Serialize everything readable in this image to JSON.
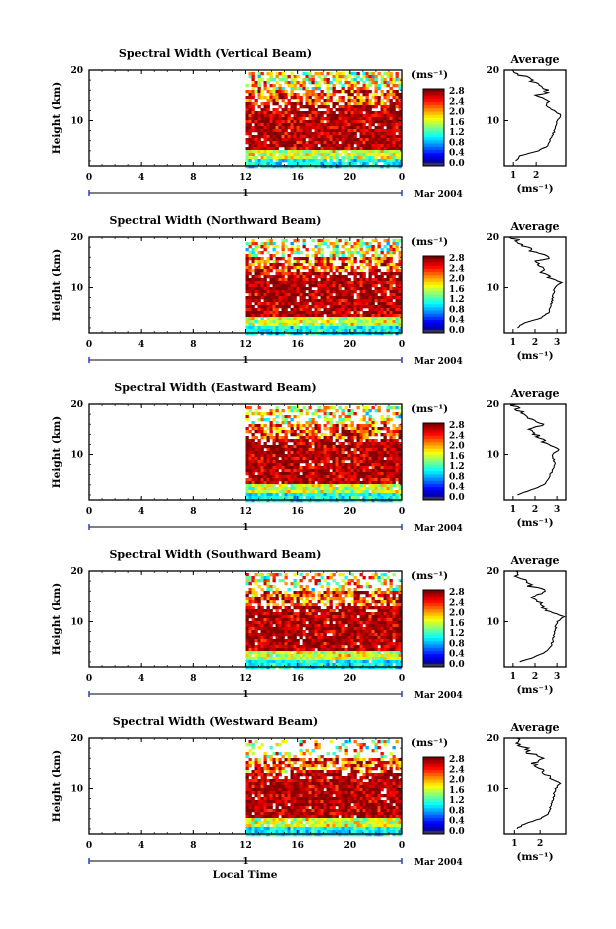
{
  "figure": {
    "xlabel": "Local Time",
    "colorbar_unit": "(ms⁻¹)",
    "average_title": "Average",
    "average_unit": "(ms⁻¹)",
    "date_label": "Mar 2004",
    "day_label": "1"
  },
  "chart_data": [
    {
      "type": "heatmap",
      "title": "Spectral Width (Vertical Beam)",
      "ylabel": "Height (km)",
      "x_ticks": [
        "0",
        "4",
        "8",
        "12",
        "16",
        "20",
        "0"
      ],
      "xlim": [
        0,
        24
      ],
      "ylim": [
        1,
        20
      ],
      "y_ticks": [
        "20",
        "10"
      ],
      "data_start_hour": 12,
      "colorbar_ticks": [
        "2.8",
        "2.4",
        "2.0",
        "1.6",
        "1.2",
        "0.8",
        "0.4",
        "0.0"
      ],
      "colorbar_range": [
        0,
        3
      ],
      "average": {
        "type": "line",
        "x_ticks": [
          "1",
          "2"
        ],
        "xlim": [
          0.6,
          3.3
        ],
        "height": [
          2,
          3,
          4,
          5,
          6,
          8,
          10,
          11,
          12,
          13,
          14,
          15,
          16,
          17,
          18,
          19,
          20
        ],
        "width": [
          1.1,
          1.3,
          2.1,
          2.5,
          2.6,
          2.8,
          2.9,
          3.1,
          2.8,
          2.5,
          2.4,
          2.1,
          2.6,
          2.0,
          1.8,
          1.3,
          1.1
        ]
      }
    },
    {
      "type": "heatmap",
      "title": "Spectral Width (Northward Beam)",
      "ylabel": "Height (km)",
      "x_ticks": [
        "0",
        "4",
        "8",
        "12",
        "16",
        "20",
        "0"
      ],
      "xlim": [
        0,
        24
      ],
      "ylim": [
        1,
        20
      ],
      "y_ticks": [
        "20",
        "10"
      ],
      "data_start_hour": 12,
      "colorbar_ticks": [
        "2.8",
        "2.4",
        "2.0",
        "1.6",
        "1.2",
        "0.8",
        "0.4",
        "0.0"
      ],
      "colorbar_range": [
        0,
        3
      ],
      "average": {
        "type": "line",
        "x_ticks": [
          "1",
          "2",
          "3"
        ],
        "xlim": [
          0.6,
          3.4
        ],
        "height": [
          2,
          3,
          4,
          5,
          6,
          8,
          10,
          11,
          12,
          13,
          14,
          15,
          16,
          17,
          18,
          19,
          20
        ],
        "width": [
          1.2,
          1.5,
          2.3,
          2.6,
          2.7,
          2.8,
          2.9,
          3.2,
          2.6,
          2.4,
          2.2,
          2.0,
          2.7,
          1.9,
          1.6,
          1.3,
          1.0
        ]
      }
    },
    {
      "type": "heatmap",
      "title": "Spectral Width (Eastward Beam)",
      "ylabel": "Height (km)",
      "x_ticks": [
        "0",
        "4",
        "8",
        "12",
        "16",
        "20",
        "0"
      ],
      "xlim": [
        0,
        24
      ],
      "ylim": [
        1,
        20
      ],
      "y_ticks": [
        "20",
        "10"
      ],
      "data_start_hour": 12,
      "colorbar_ticks": [
        "2.8",
        "2.4",
        "2.0",
        "1.6",
        "1.2",
        "0.8",
        "0.4",
        "0.0"
      ],
      "colorbar_range": [
        0,
        3
      ],
      "average": {
        "type": "line",
        "x_ticks": [
          "1",
          "2",
          "3"
        ],
        "xlim": [
          0.6,
          3.4
        ],
        "height": [
          2,
          3,
          4,
          5,
          6,
          8,
          10,
          11,
          12,
          13,
          14,
          15,
          16,
          17,
          18,
          19,
          20
        ],
        "width": [
          1.2,
          1.8,
          2.4,
          2.6,
          2.7,
          2.9,
          2.8,
          3.1,
          2.6,
          2.3,
          2.0,
          1.8,
          2.5,
          1.7,
          1.4,
          1.2,
          1.0
        ]
      }
    },
    {
      "type": "heatmap",
      "title": "Spectral Width (Southward Beam)",
      "ylabel": "Height (km)",
      "x_ticks": [
        "0",
        "4",
        "8",
        "12",
        "16",
        "20",
        "0"
      ],
      "xlim": [
        0,
        24
      ],
      "ylim": [
        1,
        20
      ],
      "y_ticks": [
        "20",
        "10"
      ],
      "data_start_hour": 12,
      "colorbar_ticks": [
        "2.8",
        "2.4",
        "2.0",
        "1.6",
        "1.2",
        "0.8",
        "0.4",
        "0.0"
      ],
      "colorbar_range": [
        0,
        3
      ],
      "average": {
        "type": "line",
        "x_ticks": [
          "1",
          "2",
          "3"
        ],
        "xlim": [
          0.6,
          3.4
        ],
        "height": [
          2,
          3,
          4,
          5,
          6,
          8,
          10,
          11,
          12,
          13,
          14,
          15,
          16,
          17,
          18,
          19,
          20
        ],
        "width": [
          1.3,
          2.0,
          2.5,
          2.7,
          2.8,
          2.9,
          3.0,
          3.3,
          2.7,
          2.4,
          2.1,
          1.9,
          2.6,
          1.8,
          1.5,
          1.2,
          1.0
        ]
      }
    },
    {
      "type": "heatmap",
      "title": "Spectral Width (Westward Beam)",
      "ylabel": "Height (km)",
      "x_ticks": [
        "0",
        "4",
        "8",
        "12",
        "16",
        "20",
        "0"
      ],
      "xlim": [
        0,
        24
      ],
      "ylim": [
        1,
        20
      ],
      "y_ticks": [
        "20",
        "10"
      ],
      "data_start_hour": 12,
      "colorbar_ticks": [
        "2.8",
        "2.4",
        "2.0",
        "1.6",
        "1.2",
        "0.8",
        "0.4",
        "0.0"
      ],
      "colorbar_range": [
        0,
        3
      ],
      "average": {
        "type": "line",
        "x_ticks": [
          "1",
          "2"
        ],
        "xlim": [
          0.6,
          3.0
        ],
        "height": [
          2,
          3,
          4,
          5,
          6,
          8,
          10,
          11,
          12,
          13,
          14,
          15,
          16,
          17,
          18,
          19,
          20
        ],
        "width": [
          1.1,
          1.4,
          2.0,
          2.3,
          2.4,
          2.5,
          2.6,
          2.8,
          2.4,
          2.2,
          1.9,
          1.7,
          2.3,
          1.6,
          1.4,
          1.2,
          1.0
        ]
      }
    }
  ]
}
